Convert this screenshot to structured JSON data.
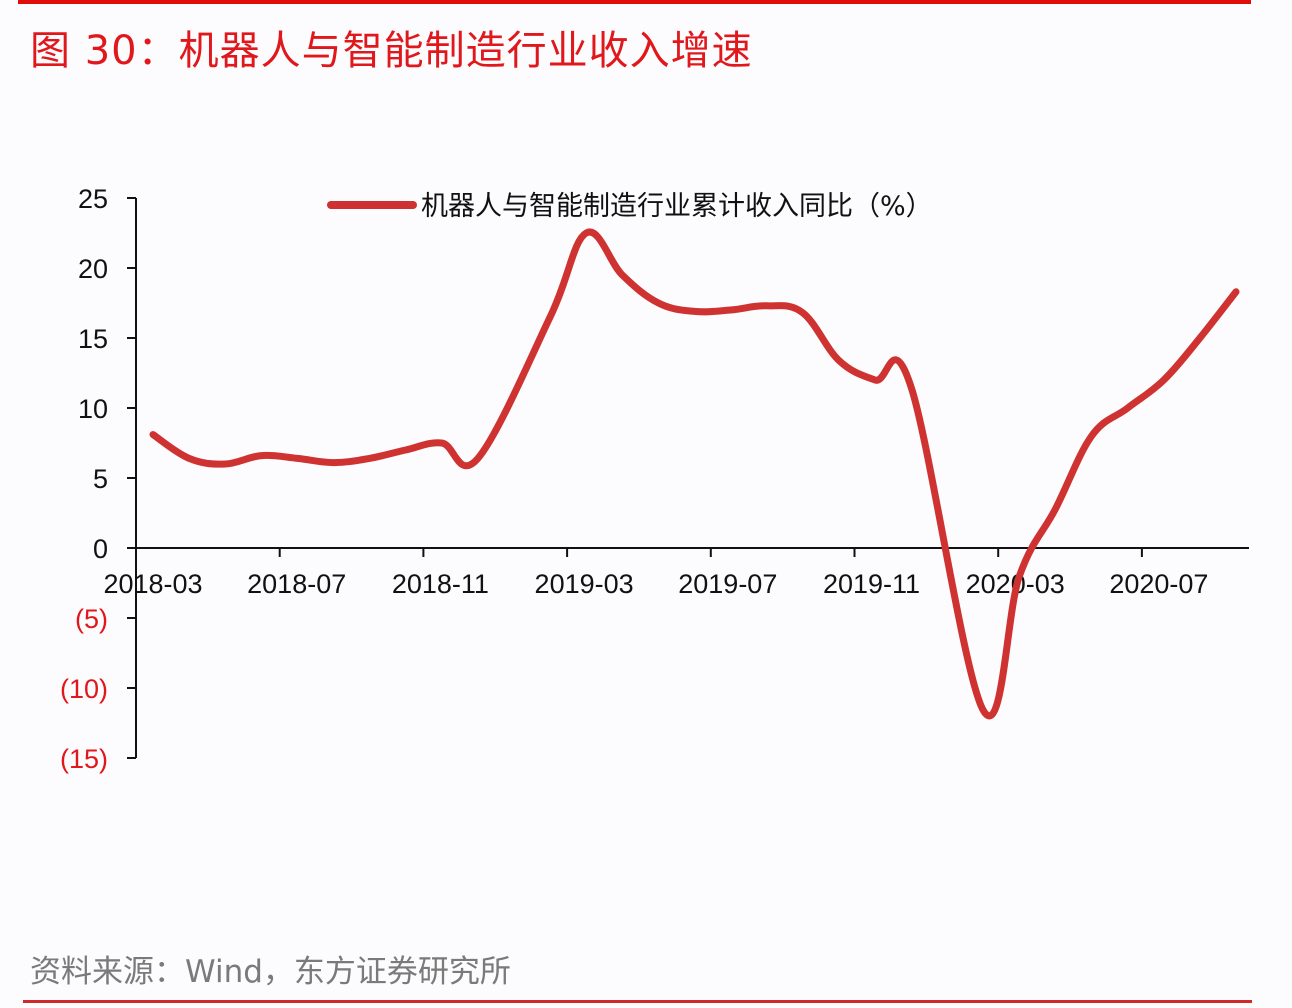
{
  "header": {
    "title": "图 30：机器人与智能制造行业收入增速"
  },
  "footer": {
    "source": "资料来源：Wind，东方证券研究所"
  },
  "colors": {
    "title": "#e0181c",
    "series": "#cf3331",
    "rule_top": "#e00d0d",
    "rule_bottom": "#cf2a27",
    "negative_tick": "#e0181c",
    "axis": "#111111"
  },
  "chart_data": {
    "type": "line",
    "title": "机器人与智能制造行业收入增速",
    "xlabel": "",
    "ylabel": "",
    "ylim": [
      -15,
      25
    ],
    "yticks": [
      25,
      20,
      15,
      10,
      5,
      0,
      -5,
      -10,
      -15
    ],
    "ytick_labels": [
      "25",
      "20",
      "15",
      "10",
      "5",
      "0",
      "(5)",
      "(10)",
      "(15)"
    ],
    "xtick_labels": [
      "2018-03",
      "2018-07",
      "2018-11",
      "2019-03",
      "2019-07",
      "2019-11",
      "2020-03",
      "2020-07"
    ],
    "grid": false,
    "legend_position": "top",
    "x": [
      "2018-03",
      "2018-04",
      "2018-05",
      "2018-06",
      "2018-07",
      "2018-08",
      "2018-09",
      "2018-10",
      "2018-11",
      "2018-12",
      "2019-02",
      "2019-03",
      "2019-04",
      "2019-05",
      "2019-06",
      "2019-07",
      "2019-08",
      "2019-09",
      "2019-10",
      "2019-11",
      "2019-12",
      "2020-02",
      "2020-03",
      "2020-04",
      "2020-05",
      "2020-06",
      "2020-07",
      "2020-08",
      "2020-09"
    ],
    "series": [
      {
        "name": "机器人与智能制造行业累计收入同比（%）",
        "values": [
          8.1,
          6.4,
          6.0,
          6.6,
          6.4,
          6.1,
          6.4,
          7.0,
          7.5,
          6.4,
          16.5,
          22.5,
          19.5,
          17.5,
          16.9,
          17.0,
          17.3,
          16.8,
          13.4,
          12.0,
          11.5,
          -11.6,
          -2.0,
          2.8,
          8.0,
          10.0,
          12.0,
          15.0,
          18.3
        ]
      }
    ]
  }
}
